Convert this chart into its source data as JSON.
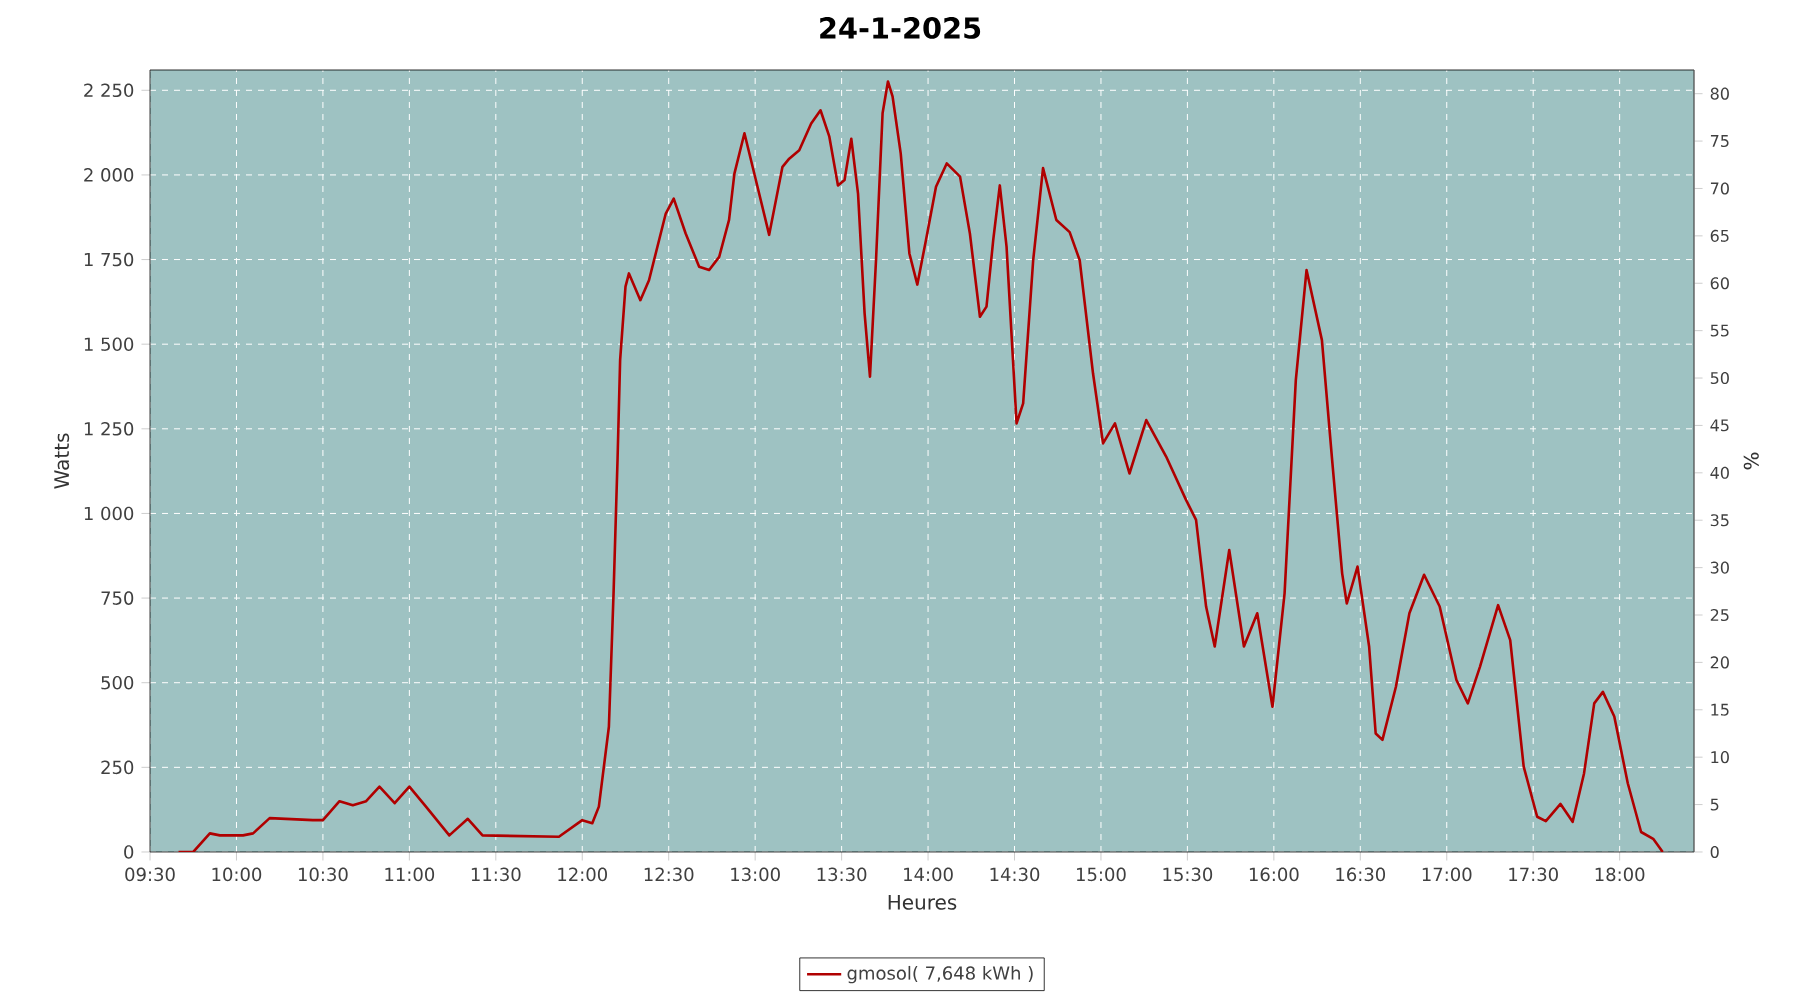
{
  "chart_data": {
    "type": "line",
    "title": "24-1-2025",
    "xlabel": "Heures",
    "ylabel": "Watts",
    "y2label": "%",
    "xlim": [
      9.5,
      18.43
    ],
    "ylim": [
      0,
      2310
    ],
    "y2lim": [
      0,
      82.5
    ],
    "xticks": [
      {
        "value": 9.5,
        "label": "09:30"
      },
      {
        "value": 10,
        "label": "10:00"
      },
      {
        "value": 10.5,
        "label": "10:30"
      },
      {
        "value": 11,
        "label": "11:00"
      },
      {
        "value": 11.5,
        "label": "11:30"
      },
      {
        "value": 12,
        "label": "12:00"
      },
      {
        "value": 12.5,
        "label": "12:30"
      },
      {
        "value": 13,
        "label": "13:00"
      },
      {
        "value": 13.5,
        "label": "13:30"
      },
      {
        "value": 14,
        "label": "14:00"
      },
      {
        "value": 14.5,
        "label": "14:30"
      },
      {
        "value": 15,
        "label": "15:00"
      },
      {
        "value": 15.5,
        "label": "15:30"
      },
      {
        "value": 16,
        "label": "16:00"
      },
      {
        "value": 16.5,
        "label": "16:30"
      },
      {
        "value": 17,
        "label": "17:00"
      },
      {
        "value": 17.5,
        "label": "17:30"
      },
      {
        "value": 18,
        "label": "18:00"
      }
    ],
    "yticks": [
      0,
      250,
      500,
      750,
      {
        "value": 1000,
        "label": "1 000"
      },
      {
        "value": 1250,
        "label": "1 250"
      },
      {
        "value": 1500,
        "label": "1 500"
      },
      {
        "value": 1750,
        "label": "1 750"
      },
      {
        "value": 2000,
        "label": "2 000"
      },
      {
        "value": 2250,
        "label": "2 250"
      }
    ],
    "y2ticks": [
      0,
      5,
      10,
      15,
      20,
      25,
      30,
      35,
      40,
      45,
      50,
      55,
      60,
      65,
      70,
      75,
      80
    ],
    "grid": true,
    "legend": "bottom",
    "marker": "none",
    "line_style": "solid",
    "series": [
      {
        "name": "gmosol( 7,648 kWh )",
        "color": "#b00000",
        "x": [
          9.665,
          9.75,
          9.846,
          9.904,
          10.038,
          10.096,
          10.192,
          10.442,
          10.5,
          10.596,
          10.673,
          10.75,
          10.827,
          10.915,
          11.0,
          11.096,
          11.231,
          11.338,
          11.423,
          11.865,
          12.0,
          12.058,
          12.096,
          12.154,
          12.181,
          12.204,
          12.219,
          12.25,
          12.27,
          12.336,
          12.386,
          12.483,
          12.529,
          12.598,
          12.676,
          12.734,
          12.792,
          12.849,
          12.88,
          12.938,
          13.004,
          13.081,
          13.158,
          13.197,
          13.255,
          13.324,
          13.378,
          13.429,
          13.479,
          13.517,
          13.556,
          13.595,
          13.633,
          13.664,
          13.699,
          13.737,
          13.768,
          13.795,
          13.842,
          13.892,
          13.938,
          13.988,
          14.046,
          14.108,
          14.185,
          14.242,
          14.3,
          14.338,
          14.377,
          14.415,
          14.454,
          14.512,
          14.55,
          14.608,
          14.665,
          14.742,
          14.819,
          14.877,
          14.954,
          15.012,
          15.081,
          15.165,
          15.262,
          15.377,
          15.492,
          15.55,
          15.608,
          15.658,
          15.742,
          15.827,
          15.904,
          15.992,
          16.062,
          16.127,
          16.189,
          16.278,
          16.337,
          16.395,
          16.422,
          16.484,
          16.551,
          16.589,
          16.628,
          16.706,
          16.784,
          16.869,
          16.959,
          17.056,
          17.122,
          17.192,
          17.297,
          17.367,
          17.445,
          17.523,
          17.573,
          17.658,
          17.728,
          17.794,
          17.853,
          17.903,
          17.969,
          18.047,
          18.124,
          18.194,
          18.249
        ],
        "values": [
          0,
          0,
          55,
          49,
          49,
          55,
          100,
          94,
          94,
          150,
          138,
          150,
          193,
          144,
          193,
          134,
          49,
          98,
          49,
          45,
          94,
          85,
          134,
          370,
          764,
          1158,
          1453,
          1670,
          1709,
          1630,
          1689,
          1886,
          1930,
          1827,
          1729,
          1719,
          1758,
          1867,
          2004,
          2123,
          1985,
          1823,
          2024,
          2048,
          2073,
          2152,
          2191,
          2113,
          1969,
          1985,
          2107,
          1945,
          1591,
          1404,
          1748,
          2182,
          2276,
          2231,
          2063,
          1768,
          1676,
          1808,
          1965,
          2034,
          1995,
          1827,
          1581,
          1611,
          1808,
          1969,
          1788,
          1266,
          1325,
          1748,
          2020,
          1867,
          1831,
          1748,
          1414,
          1207,
          1266,
          1118,
          1276,
          1168,
          1040,
          981,
          725,
          607,
          892,
          607,
          705,
          429,
          764,
          1394,
          1719,
          1512,
          1158,
          823,
          734,
          843,
          607,
          350,
          331,
          488,
          705,
          819,
          725,
          508,
          439,
          547,
          729,
          626,
          252,
          104,
          91,
          142,
          89,
          232,
          439,
          473,
          400,
          203,
          59,
          39,
          0
        ]
      }
    ]
  }
}
